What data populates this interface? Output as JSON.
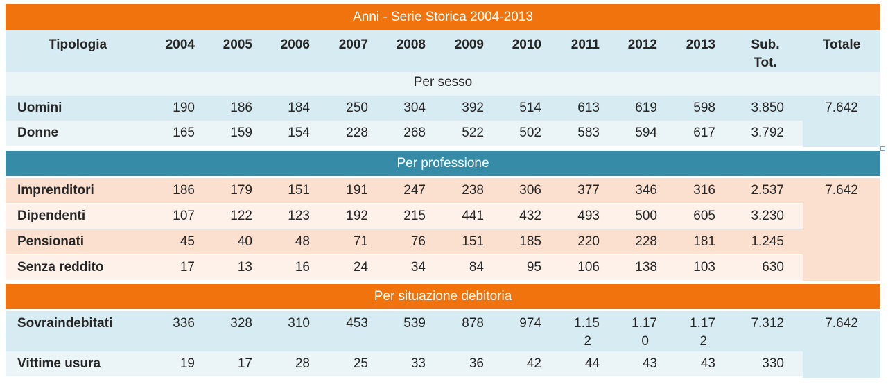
{
  "title": "Anni - Serie Storica 2004-2013",
  "header": {
    "tipologia": "Tipologia",
    "years": [
      "2004",
      "2005",
      "2006",
      "2007",
      "2008",
      "2009",
      "2010",
      "2011",
      "2012",
      "2013"
    ],
    "subtot_line1": "Sub.",
    "subtot_line2": "Tot.",
    "totale": "Totale"
  },
  "sesso": {
    "label": "Per sesso",
    "rows": [
      {
        "label": "Uomini",
        "values": [
          "190",
          "186",
          "184",
          "250",
          "304",
          "392",
          "514",
          "613",
          "619",
          "598"
        ],
        "subtot": "3.850"
      },
      {
        "label": "Donne",
        "values": [
          "165",
          "159",
          "154",
          "228",
          "268",
          "522",
          "502",
          "583",
          "594",
          "617"
        ],
        "subtot": "3.792"
      }
    ],
    "totale": "7.642"
  },
  "professione": {
    "label": "Per professione",
    "rows": [
      {
        "label": "Imprenditori",
        "values": [
          "186",
          "179",
          "151",
          "191",
          "247",
          "238",
          "306",
          "377",
          "346",
          "316"
        ],
        "subtot": "2.537"
      },
      {
        "label": "Dipendenti",
        "values": [
          "107",
          "122",
          "123",
          "192",
          "215",
          "441",
          "432",
          "493",
          "500",
          "605"
        ],
        "subtot": "3.230"
      },
      {
        "label": "Pensionati",
        "values": [
          "45",
          "40",
          "48",
          "71",
          "76",
          "151",
          "185",
          "220",
          "228",
          "181"
        ],
        "subtot": "1.245"
      },
      {
        "label": "Senza reddito",
        "values": [
          "17",
          "13",
          "16",
          "24",
          "34",
          "84",
          "95",
          "106",
          "138",
          "103"
        ],
        "subtot": "630"
      }
    ],
    "totale": "7.642"
  },
  "debitoria": {
    "label": "Per situazione debitoria",
    "sovra": {
      "label": "Sovraindebitati",
      "values": [
        "336",
        "328",
        "310",
        "453",
        "539",
        "878",
        "974"
      ],
      "wrapped": [
        {
          "line1": "1.15",
          "line2": "2"
        },
        {
          "line1": "1.17",
          "line2": "0"
        },
        {
          "line1": "1.17",
          "line2": "2"
        }
      ],
      "subtot": "7.312"
    },
    "usura": {
      "label": "Vittime usura",
      "values": [
        "19",
        "17",
        "28",
        "25",
        "33",
        "36",
        "42",
        "44",
        "43",
        "43"
      ],
      "subtot": "330"
    },
    "totale": "7.642"
  },
  "colors": {
    "orange": "#f0730e",
    "teal": "#368ba6",
    "light_blue_dark": "#d6ebf2",
    "light_blue_light": "#ebf5f8",
    "peach_dark": "#fbe0cf",
    "peach_light": "#fdf1e9"
  }
}
